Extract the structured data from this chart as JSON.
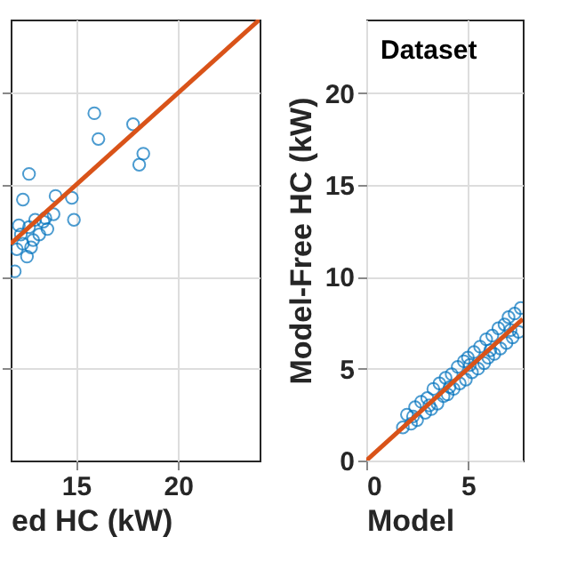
{
  "chart_data": [
    {
      "type": "scatter",
      "xlabel": "ed HC (kW)",
      "xlim": [
        11.8,
        24
      ],
      "xticks": [
        15,
        20
      ],
      "ylim": [
        0,
        24
      ],
      "yticks": [
        {
          "value": 5,
          "label": null
        },
        {
          "value": 10,
          "label": null
        },
        {
          "value": 15,
          "label": null
        },
        {
          "value": 20,
          "label": null
        }
      ],
      "tick_labels": "x",
      "grid": true,
      "series": [
        {
          "marker": "circle",
          "color": "#0072bd",
          "x": [
            15.9,
            16.1,
            17.8,
            18.3,
            18.1,
            12.7,
            12.4,
            14.0,
            14.8,
            14.9,
            13.9,
            13.6,
            13.2,
            12.7,
            12.4,
            12.6,
            12.0,
            12.1,
            13.0,
            12.3,
            12.9,
            13.4,
            12.2,
            12.8,
            13.5
          ],
          "values": [
            18.9,
            17.5,
            18.3,
            16.7,
            16.1,
            15.6,
            14.2,
            14.4,
            14.3,
            13.1,
            13.4,
            12.6,
            12.3,
            12.7,
            11.8,
            11.1,
            10.3,
            11.5,
            13.1,
            12.3,
            12.0,
            13.0,
            12.8,
            11.6,
            13.2
          ]
        },
        {
          "type": "line",
          "marker": "none",
          "color": "#d95319",
          "x": [
            11.8,
            24
          ],
          "values": [
            11.8,
            24
          ]
        }
      ]
    },
    {
      "type": "scatter",
      "title": "Dataset",
      "xlabel": "Model",
      "ylabel": "Model-Free HC (kW)",
      "xlim": [
        0,
        7.7
      ],
      "xticks": [
        0,
        5
      ],
      "ylim": [
        0,
        24
      ],
      "yticks": [
        0,
        5,
        10,
        15,
        20
      ],
      "grid": true,
      "series": [
        {
          "marker": "circle",
          "color": "#0072bd",
          "x": [
            1.8,
            2.0,
            2.2,
            2.4,
            2.5,
            2.7,
            2.9,
            3.0,
            3.2,
            3.3,
            3.5,
            3.6,
            3.8,
            3.9,
            4.0,
            4.2,
            4.3,
            4.5,
            4.6,
            4.8,
            4.9,
            5.0,
            5.2,
            5.3,
            5.5,
            5.6,
            5.8,
            5.9,
            6.0,
            6.2,
            6.3,
            6.5,
            6.6,
            6.8,
            6.9,
            7.0,
            7.2,
            7.3,
            7.5,
            7.6,
            2.3,
            3.1,
            4.1,
            5.1,
            6.1,
            7.1
          ],
          "values": [
            1.8,
            2.5,
            2.0,
            2.9,
            2.2,
            3.2,
            2.6,
            3.4,
            2.8,
            3.9,
            3.1,
            4.2,
            3.5,
            4.5,
            3.6,
            4.7,
            3.9,
            5.1,
            4.2,
            5.4,
            4.4,
            5.6,
            4.8,
            5.9,
            5.0,
            6.2,
            5.3,
            6.6,
            5.6,
            6.8,
            5.8,
            7.2,
            6.1,
            7.4,
            6.4,
            7.8,
            6.7,
            8.0,
            7.0,
            8.3,
            2.4,
            3.0,
            4.0,
            5.2,
            6.0,
            7.1
          ]
        },
        {
          "type": "line",
          "marker": "none",
          "color": "#d95319",
          "x": [
            0,
            7.7
          ],
          "values": [
            0,
            7.7
          ]
        }
      ]
    }
  ]
}
